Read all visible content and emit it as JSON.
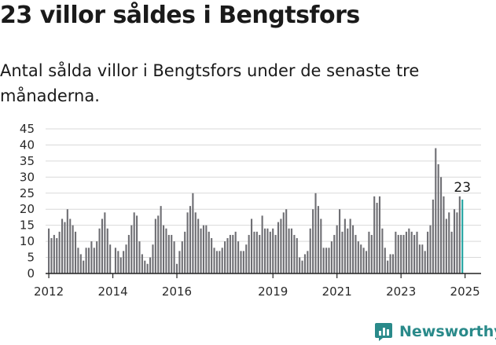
{
  "title": "23 villor såldes i Bengtsfors",
  "subtitle": "Antal sålda villor i Bengtsfors under de senaste tre månaderna.",
  "brand": {
    "name": "Newsworthy",
    "icon": "newsworthy-logo-icon"
  },
  "colors": {
    "bar": "#6e6e73",
    "highlight": "#1fa3a0",
    "grid": "#d9d9d9",
    "brand": "#2a8a8a"
  },
  "chart_data": {
    "type": "bar",
    "ylim": [
      0,
      45
    ],
    "yticks": [
      0,
      5,
      10,
      15,
      20,
      25,
      30,
      35,
      40,
      45
    ],
    "grid": true,
    "xlim": [
      2011.9,
      2025.5
    ],
    "xticks": [
      {
        "value": 2012,
        "label": "2012"
      },
      {
        "value": 2014,
        "label": "2014"
      },
      {
        "value": 2016,
        "label": "2016"
      },
      {
        "value": 2019,
        "label": "2019"
      },
      {
        "value": 2021,
        "label": "2021"
      },
      {
        "value": 2023,
        "label": "2023"
      },
      {
        "value": 2025,
        "label": "2025"
      }
    ],
    "start": 2012.0,
    "step": 0.08333,
    "values": [
      14,
      11,
      12,
      11,
      13,
      17,
      16,
      20,
      17,
      15,
      13,
      8,
      6,
      4,
      8,
      8,
      10,
      8,
      10,
      14,
      17,
      19,
      14,
      9,
      0,
      8,
      7,
      5,
      7,
      9,
      12,
      15,
      19,
      18,
      10,
      6,
      4,
      3,
      5,
      9,
      17,
      18,
      21,
      15,
      14,
      12,
      12,
      10,
      3,
      7,
      10,
      13,
      19,
      21,
      25,
      19,
      17,
      14,
      15,
      15,
      13,
      11,
      8,
      7,
      7,
      8,
      10,
      11,
      12,
      12,
      13,
      10,
      7,
      7,
      9,
      12,
      17,
      13,
      13,
      12,
      18,
      14,
      14,
      13,
      14,
      12,
      16,
      17,
      19,
      20,
      14,
      14,
      12,
      11,
      5,
      4,
      6,
      7,
      14,
      20,
      25,
      21,
      17,
      8,
      8,
      8,
      10,
      12,
      15,
      20,
      13,
      17,
      14,
      17,
      15,
      12,
      10,
      9,
      8,
      7,
      13,
      12,
      24,
      22,
      24,
      14,
      8,
      4,
      6,
      6,
      13,
      12,
      12,
      12,
      13,
      14,
      13,
      12,
      13,
      9,
      9,
      7,
      13,
      15,
      23,
      39,
      34,
      30,
      24,
      17,
      19,
      13,
      20,
      19,
      24,
      23
    ],
    "highlight_index": 155,
    "annotation": {
      "index": 155,
      "text": "23"
    }
  }
}
